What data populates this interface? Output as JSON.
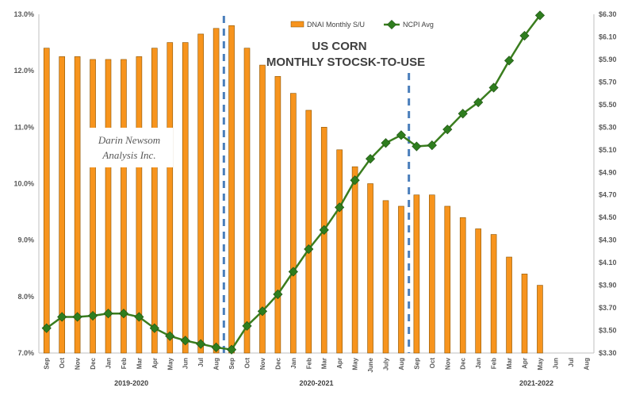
{
  "chart_data": {
    "type": "bar",
    "title": "US CORN",
    "subtitle": "MONTHLY STOCSK-TO-USE",
    "watermark": [
      "Darin Newsom",
      "Analysis Inc."
    ],
    "categories": [
      "Sep",
      "Oct",
      "Nov",
      "Dec",
      "Jan",
      "Feb",
      "Mar",
      "Apr",
      "May",
      "Jun",
      "Jul",
      "Aug",
      "Sep",
      "Oct",
      "Nov",
      "Dec",
      "Jan",
      "Feb",
      "Mar",
      "Apr",
      "May",
      "June",
      "July",
      "Aug",
      "Sep",
      "Oct",
      "Nov",
      "Dec",
      "Jan",
      "Feb",
      "Mar",
      "Apr",
      "May",
      "Jun",
      "Jul",
      "Aug"
    ],
    "groups": [
      {
        "label": "2019-2020",
        "start": 0,
        "end": 11
      },
      {
        "label": "2020-2021",
        "start": 12,
        "end": 23
      },
      {
        "label": "2021-2022",
        "start": 24,
        "end": 35
      }
    ],
    "series": [
      {
        "name": "DNAI Monthly S/U",
        "type": "bar",
        "axis": "left",
        "color": "#F7941D",
        "values": [
          12.4,
          12.25,
          12.25,
          12.2,
          12.2,
          12.2,
          12.25,
          12.4,
          12.5,
          12.5,
          12.65,
          12.75,
          12.8,
          12.4,
          12.1,
          11.9,
          11.6,
          11.3,
          11.0,
          10.6,
          10.3,
          10.0,
          9.7,
          9.6,
          9.8,
          9.8,
          9.6,
          9.4,
          9.2,
          9.1,
          8.7,
          8.4,
          8.2,
          null,
          null,
          null
        ]
      },
      {
        "name": "NCPI Avg",
        "type": "line",
        "axis": "right",
        "color": "#3A7D1E",
        "marker_color": "#2E7D1E",
        "values": [
          3.52,
          3.62,
          3.62,
          3.63,
          3.65,
          3.65,
          3.62,
          3.52,
          3.45,
          3.41,
          3.38,
          3.35,
          3.33,
          3.54,
          3.67,
          3.82,
          4.02,
          4.22,
          4.39,
          4.59,
          4.83,
          5.02,
          5.16,
          5.23,
          5.13,
          5.14,
          5.28,
          5.42,
          5.52,
          5.65,
          5.89,
          6.11,
          6.29,
          null,
          null,
          null
        ]
      }
    ],
    "y_left": {
      "min": 7.0,
      "max": 13.0,
      "step": 1.0,
      "tick_labels": [
        "7.0%",
        "8.0%",
        "9.0%",
        "10.0%",
        "11.0%",
        "12.0%",
        "13.0%"
      ]
    },
    "y_right": {
      "min": 3.3,
      "max": 6.3,
      "step": 0.2,
      "tick_labels": [
        "$3.30",
        "$3.50",
        "$3.70",
        "$3.90",
        "$4.10",
        "$4.30",
        "$4.50",
        "$4.70",
        "$4.90",
        "$5.10",
        "$5.30",
        "$5.50",
        "$5.70",
        "$5.90",
        "$6.10",
        "$6.30"
      ]
    },
    "gridlines": false,
    "legend_position": "top-center",
    "markers": [
      {
        "index": 12,
        "style": "dashed",
        "color": "#4A7EBB"
      },
      {
        "index": 24,
        "style": "dashed",
        "color": "#4A7EBB"
      }
    ]
  }
}
